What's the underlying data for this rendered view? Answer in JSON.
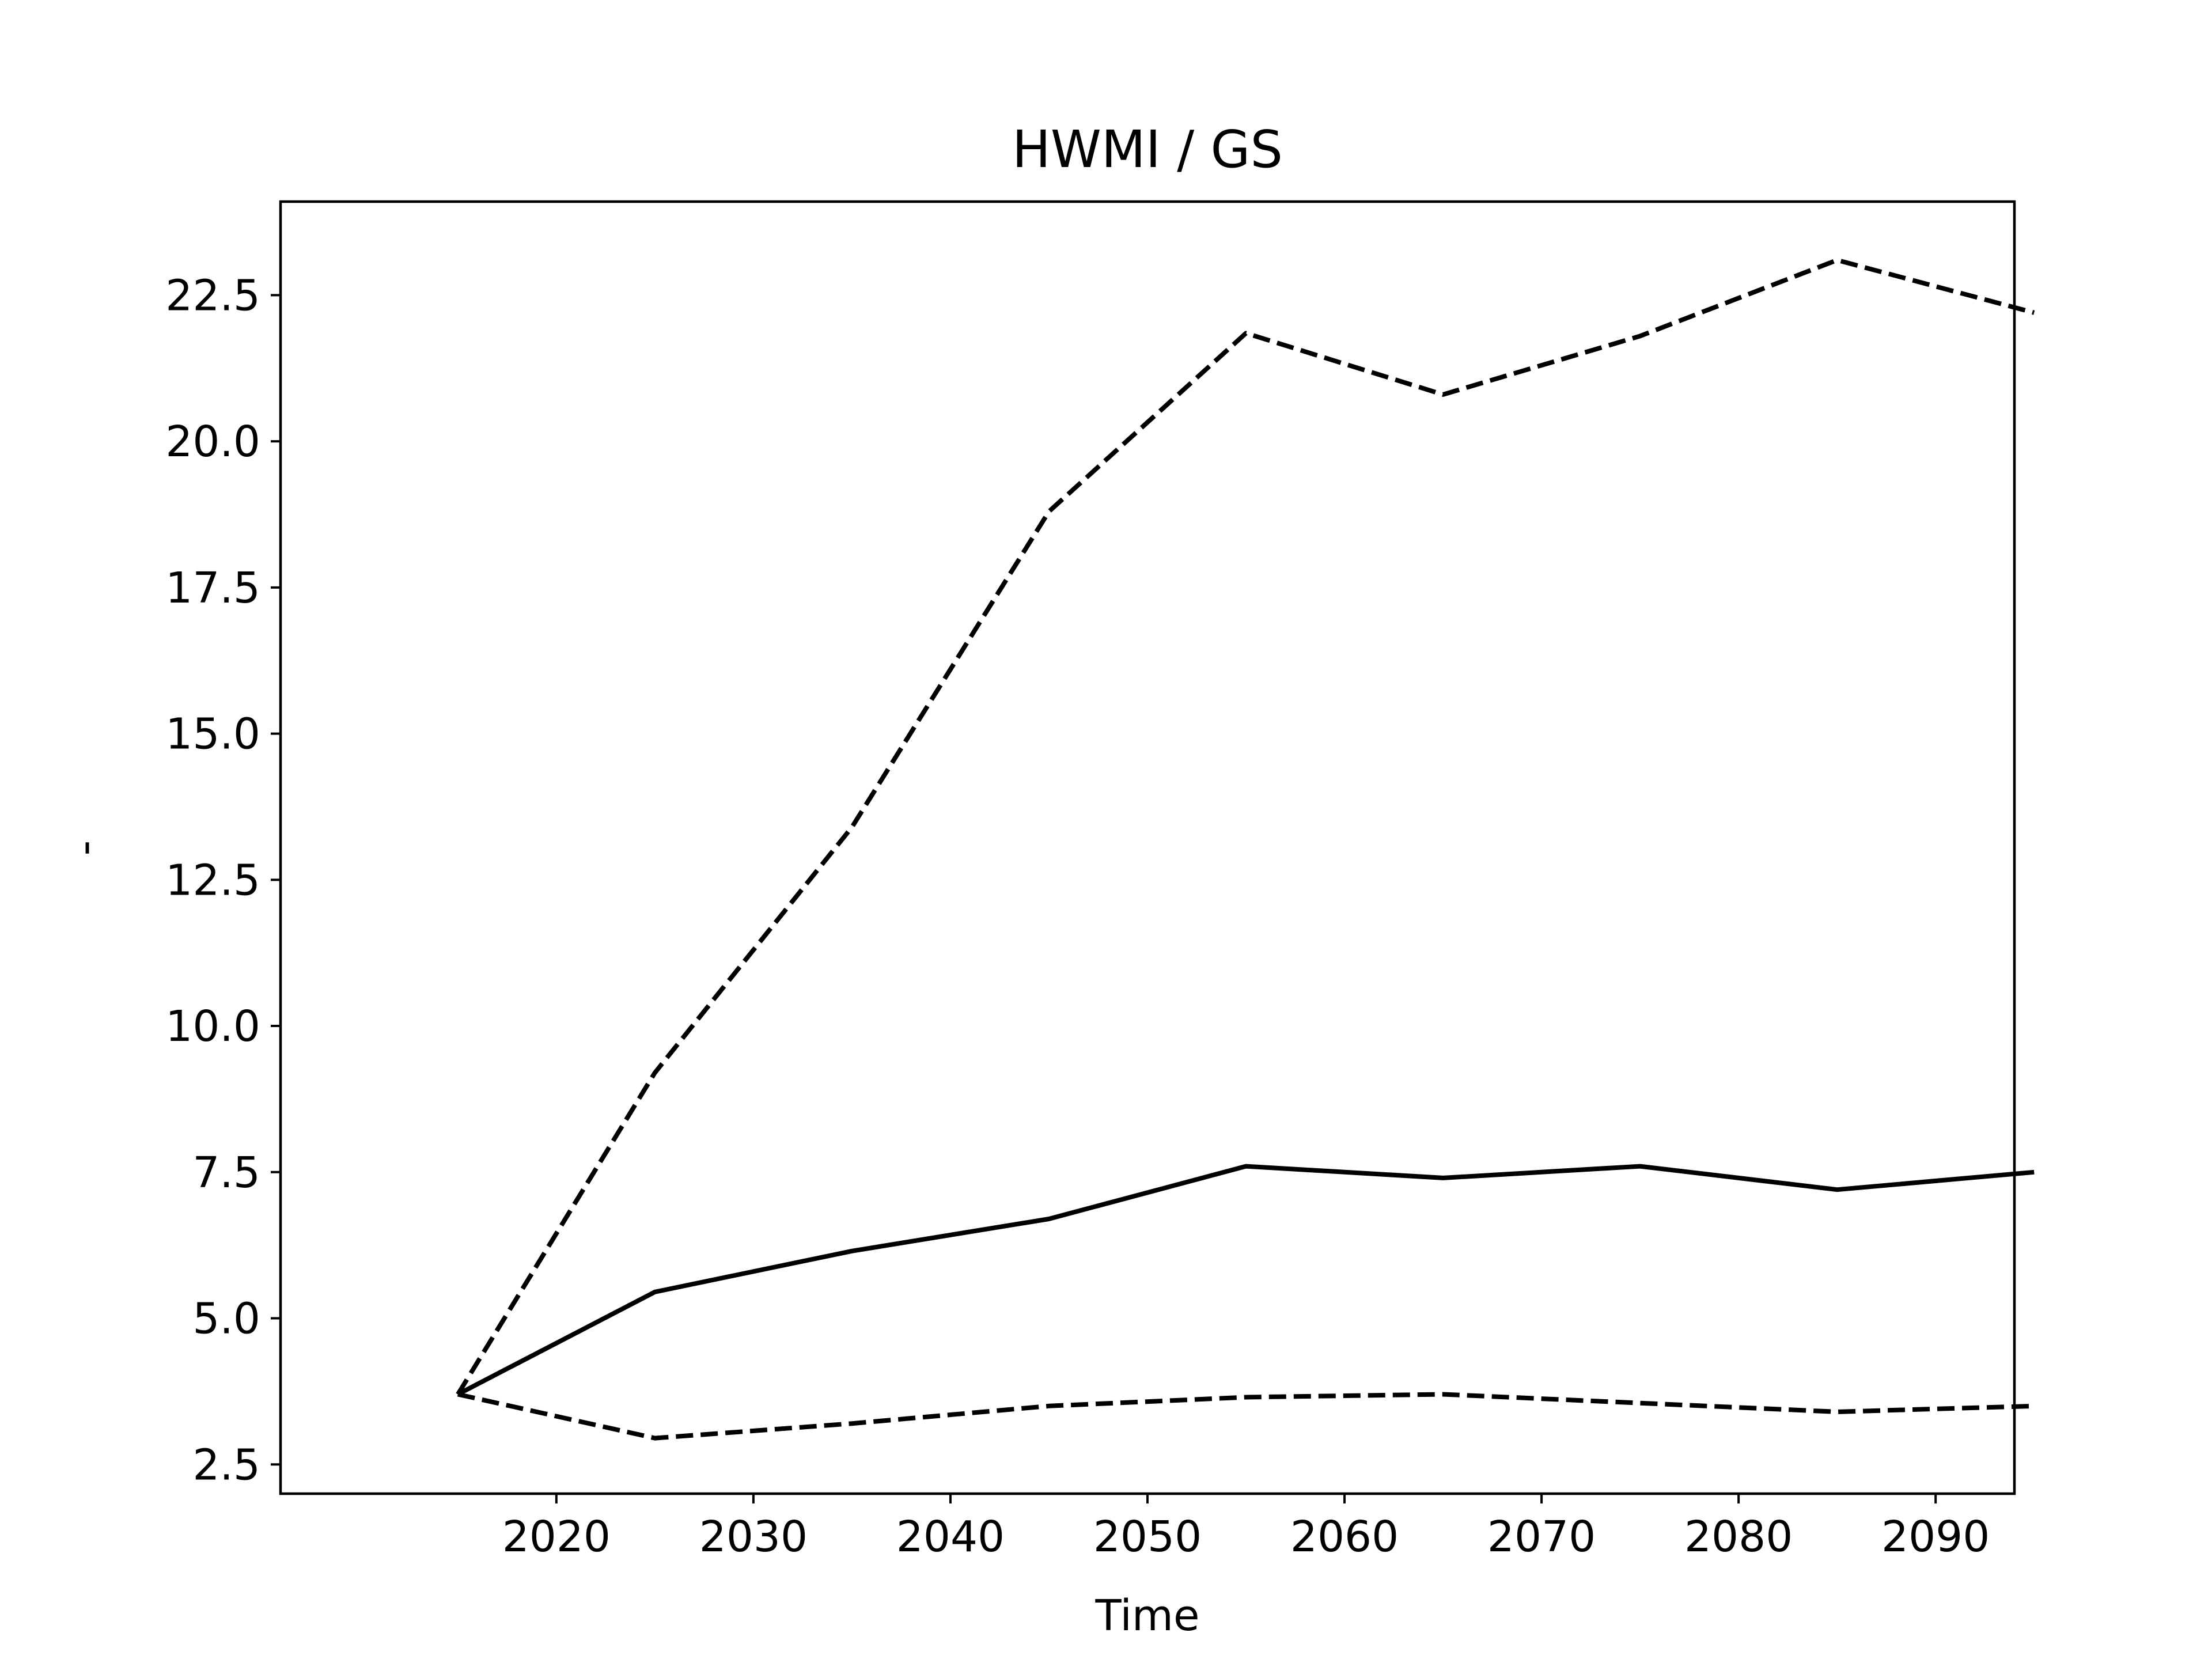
{
  "chart_data": {
    "type": "line",
    "title": "HWMI / GS",
    "xlabel": "Time",
    "ylabel": "-",
    "x": [
      2015,
      2025,
      2035,
      2045,
      2055,
      2065,
      2075,
      2085,
      2095
    ],
    "xlim": [
      2006,
      2094
    ],
    "ylim": [
      2,
      24.1
    ],
    "xticks": [
      "2020",
      "2030",
      "2040",
      "2050",
      "2060",
      "2070",
      "2080",
      "2090"
    ],
    "yticks": [
      "2.5",
      "5.0",
      "7.5",
      "10.0",
      "12.5",
      "15.0",
      "17.5",
      "20.0",
      "22.5"
    ],
    "grid": false,
    "series": [
      {
        "style": "solid",
        "color": "#000000",
        "values": [
          3.7,
          5.45,
          6.15,
          6.7,
          7.6,
          7.4,
          7.6,
          7.2,
          7.5
        ]
      },
      {
        "style": "dashed",
        "color": "#000000",
        "values": [
          3.7,
          9.2,
          13.4,
          18.8,
          21.85,
          20.8,
          21.8,
          23.1,
          22.2
        ]
      },
      {
        "style": "dashed",
        "color": "#000000",
        "values": [
          3.7,
          2.95,
          3.2,
          3.5,
          3.65,
          3.7,
          3.55,
          3.4,
          3.5
        ]
      }
    ]
  }
}
